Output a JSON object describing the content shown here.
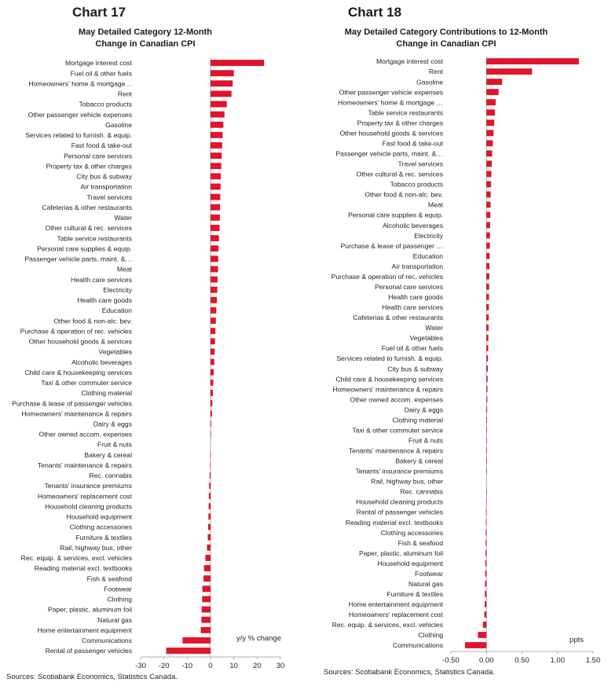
{
  "charts": [
    {
      "number": "Chart 17",
      "title": "May Detailed Category 12-Month\nChange in Canadian CPI",
      "source": "Sources: Scotiabank Economics, Statistics Canada.",
      "unit_label": "y/y % change"
    },
    {
      "number": "Chart 18",
      "title": "May Detailed Category Contributions to 12-Month\nChange in Canadian CPI",
      "source": "Sources: Scotiabank Economics, Statistics Canada.",
      "unit_label": "ppts"
    }
  ],
  "colors": {
    "bar": "#e0142a",
    "axis": "#999999"
  },
  "chart_data": [
    {
      "type": "bar",
      "orientation": "horizontal",
      "title": "May Detailed Category 12-Month Change in Canadian CPI",
      "xlabel": "y/y % change",
      "xlim": [
        -30,
        30
      ],
      "xticks": [
        -30,
        -20,
        -10,
        0,
        10,
        20,
        30
      ],
      "xtick_labels": [
        "-30",
        "-20",
        "-10",
        "0",
        "10",
        "20",
        "30"
      ],
      "categories": [
        "Mortgage interest cost",
        "Fuel oil & other fuels",
        "Homeowners' home & mortgage…",
        "Rent",
        "Tobacco products",
        "Other passenger vehicle expenses",
        "Gasoline",
        "Services related to furnish. & equip.",
        "Fast food & take-out",
        "Personal care services",
        "Property tax & other charges",
        "City bus & subway",
        "Air transportation",
        "Travel services",
        "Cafeterias & other restaurants",
        "Water",
        "Other cultural & rec. services",
        "Table service restaurants",
        "Personal care supplies & equip.",
        "Passenger vehicle parts, maint. &…",
        "Meat",
        "Health care services",
        "Electricity",
        "Health care goods",
        "Education",
        "Other food & non-alc. bev.",
        "Purchase & operation of rec. vehicles",
        "Other household goods & services",
        "Vegetables",
        "Alcoholic beverages",
        "Child care & housekeeping services",
        "Taxi & other commuter service",
        "Clothing material",
        "Purchase & lease of passenger vehicles",
        "Homeowners' maintenance & repairs",
        "Dairy & eggs",
        "Other owned accom. expenses",
        "Fruit & nuts",
        "Bakery & cereal",
        "Tenants' maintenance & repairs",
        "Rec. cannabis",
        "Tenants' insurance premiums",
        "Homeowners' replacement cost",
        "Household cleaning products",
        "Household equipment",
        "Clothing accessories",
        "Furniture & textiles",
        "Rail, highway bus, other",
        "Rec. equip. & services, excl. vehicles",
        "Reading material excl. textbooks",
        "Fish & seafood",
        "Footwear",
        "Clothing",
        "Paper, plastic, aluminum foil",
        "Natural gas",
        "Home entertainment equipment",
        "Communications",
        "Rental of passenger vehicles"
      ],
      "values": [
        23.0,
        10.0,
        9.5,
        9.0,
        7.0,
        6.0,
        5.5,
        5.2,
        5.0,
        4.8,
        4.6,
        4.4,
        4.3,
        4.2,
        4.1,
        4.0,
        3.9,
        3.6,
        3.4,
        3.3,
        3.2,
        3.0,
        2.9,
        2.7,
        2.5,
        2.3,
        2.1,
        1.9,
        1.8,
        1.6,
        1.4,
        1.2,
        1.0,
        0.8,
        0.6,
        0.3,
        0.1,
        0.0,
        -0.1,
        -0.2,
        -0.4,
        -0.6,
        -0.7,
        -0.8,
        -0.9,
        -1.0,
        -1.2,
        -1.5,
        -2.2,
        -2.8,
        -3.0,
        -3.5,
        -3.6,
        -3.8,
        -3.9,
        -4.2,
        -12.0,
        -19.0
      ]
    },
    {
      "type": "bar",
      "orientation": "horizontal",
      "title": "May Detailed Category Contributions to 12-Month Change in Canadian CPI",
      "xlabel": "ppts",
      "xlim": [
        -0.5,
        1.5
      ],
      "xticks": [
        -0.5,
        0,
        0.5,
        1.0,
        1.5
      ],
      "xtick_labels": [
        "-0.50",
        "0.00",
        "0.50",
        "1.00",
        "1.50"
      ],
      "categories": [
        "Mortgage interest cost",
        "Rent",
        "Gasoline",
        "Other passenger vehicle expenses",
        "Homeowners' home & mortgage …",
        "Table service restaurants",
        "Property tax & other charges",
        "Other household goods & services",
        "Fast food & take-out",
        "Passenger vehicle parts, maint. &…",
        "Travel services",
        "Other cultural & rec. services",
        "Tobacco products",
        "Other food & non-alc. bev.",
        "Meat",
        "Personal care supplies & equip.",
        "Alcoholic beverages",
        "Electricity",
        "Purchase & lease of passenger …",
        "Education",
        "Air transportation",
        "Purchase & operation of rec. vehicles",
        "Personal care services",
        "Health care goods",
        "Health care services",
        "Cafeterias & other restaurants",
        "Water",
        "Vegetables",
        "Fuel oil & other fuels",
        "Services related to furnish. & equip.",
        "City bus & subway",
        "Child care & housekeeping services",
        "Homeowners' maintenance & repairs",
        "Other owned accom. expenses",
        "Dairy & eggs",
        "Clothing material",
        "Taxi & other commuter service",
        "Fruit & nuts",
        "Tenants' maintenance & repairs",
        "Bakery & cereal",
        "Tenants' insurance premiums",
        "Rail, highway bus, other",
        "Rec. cannabis",
        "Household cleaning products",
        "Rental of passenger vehicles",
        "Reading material excl. textbooks",
        "Clothing accessories",
        "Fish & seafood",
        "Paper, plastic, aluminum foil",
        "Household equipment",
        "Footwear",
        "Natural gas",
        "Furniture & textiles",
        "Home entertainment equipment",
        "Homeowners' replacement cost",
        "Rec. equip. & services, excl. vehicles",
        "Clothing",
        "Communications"
      ],
      "values": [
        1.3,
        0.64,
        0.22,
        0.17,
        0.13,
        0.12,
        0.11,
        0.1,
        0.09,
        0.08,
        0.075,
        0.07,
        0.065,
        0.06,
        0.058,
        0.055,
        0.052,
        0.05,
        0.048,
        0.045,
        0.042,
        0.04,
        0.038,
        0.036,
        0.034,
        0.032,
        0.03,
        0.027,
        0.025,
        0.022,
        0.02,
        0.017,
        0.014,
        0.012,
        0.01,
        0.008,
        0.006,
        0.004,
        0.003,
        0.002,
        0.001,
        0.0,
        -0.002,
        -0.004,
        -0.006,
        -0.008,
        -0.01,
        -0.012,
        -0.014,
        -0.016,
        -0.018,
        -0.02,
        -0.022,
        -0.025,
        -0.03,
        -0.05,
        -0.12,
        -0.3
      ]
    }
  ]
}
